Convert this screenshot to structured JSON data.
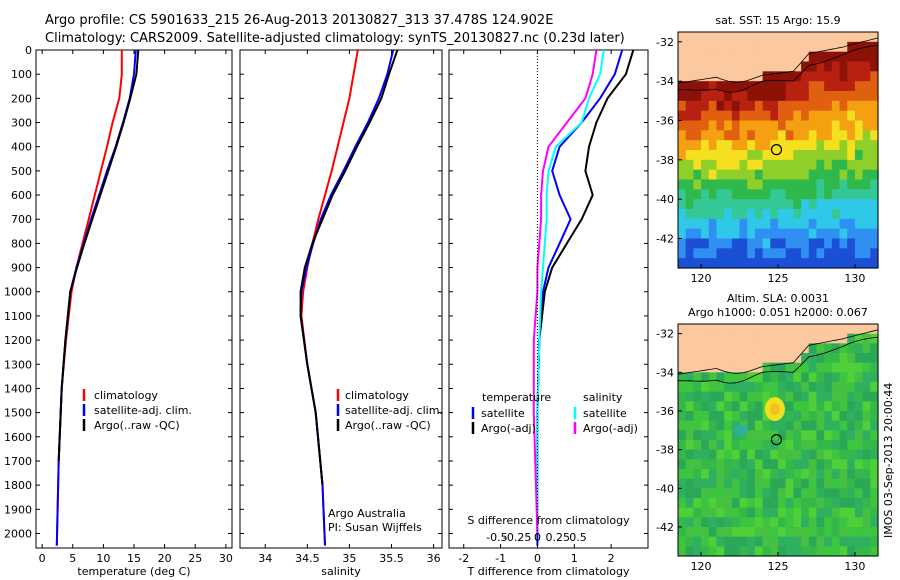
{
  "title_line1": "Argo profile: CS 5901633_215 26-Aug-2013 20130827_313 37.478S 124.902E",
  "title_line2": "Climatology: CARS2009. Satellite-adjusted climatology: synTS_20130827.nc (0.23d later)",
  "side_label": "IMOS 03-Sep-2013 20:00:44",
  "colors": {
    "climatology": "#ff0000",
    "satellite": "#0000ff",
    "argo": "#000000",
    "s_satellite": "#00ffff",
    "s_argo": "#ff00ff",
    "land": "#fbc8a0"
  },
  "chart_data": [
    {
      "type": "line",
      "id": "temperature",
      "xlabel": "temperature (deg C)",
      "ylabel": "",
      "xlim": [
        -1,
        31
      ],
      "ylim": [
        2060,
        0
      ],
      "xticks": [
        "0",
        "5",
        "10",
        "15",
        "20",
        "25",
        "30"
      ],
      "yticks": [
        "0",
        "100",
        "200",
        "300",
        "400",
        "500",
        "600",
        "700",
        "800",
        "900",
        "1000",
        "1100",
        "1200",
        "1300",
        "1400",
        "1500",
        "1600",
        "1700",
        "1800",
        "1900",
        "2000"
      ],
      "legend": [
        "climatology",
        "satellite-adj. clim.",
        "Argo(..raw -QC)"
      ],
      "series": [
        {
          "name": "climatology",
          "color": "#ff0000",
          "x": [
            13,
            13,
            12.6,
            11.5,
            10.6,
            9.6,
            8.6,
            7.6,
            6.6,
            5.6,
            4.8,
            3.9,
            3.2,
            2.7,
            2.4
          ],
          "y": [
            0,
            100,
            200,
            300,
            400,
            500,
            600,
            700,
            800,
            900,
            1000,
            1200,
            1400,
            1700,
            2050
          ]
        },
        {
          "name": "satellite-adj. clim.",
          "color": "#0000ff",
          "x": [
            15.3,
            15,
            14.3,
            13.2,
            12,
            10.6,
            9.3,
            8,
            6.8,
            5.6,
            4.6,
            3.8,
            3.2,
            2.7,
            2.4
          ],
          "y": [
            0,
            100,
            200,
            300,
            400,
            500,
            600,
            700,
            800,
            900,
            1000,
            1200,
            1400,
            1700,
            2050
          ]
        },
        {
          "name": "Argo(..raw -QC)",
          "color": "#000000",
          "x": [
            15.7,
            15.4,
            14.4,
            13.3,
            12.1,
            10.8,
            9.5,
            8.2,
            6.9,
            5.7,
            4.6,
            3.8,
            3.2,
            2.7
          ],
          "y": [
            0,
            100,
            200,
            300,
            400,
            500,
            600,
            700,
            800,
            900,
            1000,
            1200,
            1400,
            1700
          ]
        }
      ]
    },
    {
      "type": "line",
      "id": "salinity",
      "xlabel": "salinity",
      "xlim": [
        33.7,
        36.1
      ],
      "ylim": [
        2060,
        0
      ],
      "xticks": [
        "34",
        "34.5",
        "35",
        "35.5",
        "36"
      ],
      "legend": [
        "climatology",
        "satellite-adj. clim.",
        "Argo(..raw -QC)"
      ],
      "annotation": [
        "Argo Australia",
        "PI: Susan Wijffels"
      ],
      "series": [
        {
          "name": "climatology",
          "color": "#ff0000",
          "x": [
            35.1,
            35.05,
            35.0,
            34.93,
            34.86,
            34.79,
            34.71,
            34.63,
            34.56,
            34.5,
            34.45,
            34.43,
            34.5,
            34.6,
            34.68,
            34.71
          ],
          "y": [
            0,
            100,
            200,
            300,
            400,
            500,
            600,
            700,
            800,
            900,
            1000,
            1100,
            1300,
            1500,
            1800,
            2050
          ]
        },
        {
          "name": "satellite-adj. clim.",
          "color": "#0000ff",
          "x": [
            35.52,
            35.45,
            35.35,
            35.22,
            35.07,
            34.93,
            34.78,
            34.66,
            34.57,
            34.49,
            34.43,
            34.42,
            34.5,
            34.6,
            34.68,
            34.71
          ],
          "y": [
            0,
            100,
            200,
            300,
            400,
            500,
            600,
            700,
            800,
            900,
            1000,
            1100,
            1300,
            1500,
            1800,
            2050
          ]
        },
        {
          "name": "Argo(..raw -QC)",
          "color": "#000000",
          "x": [
            35.57,
            35.47,
            35.38,
            35.24,
            35.09,
            34.95,
            34.8,
            34.68,
            34.56,
            34.47,
            34.42,
            34.42,
            34.5,
            34.6,
            34.68
          ],
          "y": [
            0,
            100,
            200,
            300,
            400,
            500,
            600,
            700,
            800,
            900,
            1000,
            1100,
            1300,
            1500,
            1800
          ]
        }
      ]
    },
    {
      "type": "line",
      "id": "difference",
      "xlabel": "T difference from climatology",
      "xlabel2": "S difference from climatology",
      "xlim": [
        -2.4,
        3.0
      ],
      "ylim": [
        2060,
        0
      ],
      "xticks": [
        "-2",
        "-1",
        "0",
        "1",
        "2"
      ],
      "xticks2": [
        "-0.5",
        "-0.25",
        "0",
        "0.25",
        "0.5"
      ],
      "legend_left_title": "temperature",
      "legend_right_title": "salinity",
      "legend_left": [
        "satellite",
        "Argo(-adj)"
      ],
      "legend_right": [
        "satellite",
        "Argo(-adj)"
      ],
      "series": [
        {
          "name": "T satellite",
          "color": "#0000ff",
          "x": [
            2.3,
            2.1,
            1.7,
            1.2,
            0.6,
            0.4,
            0.6,
            0.9,
            0.6,
            0.3,
            0.15,
            0.05,
            0,
            0,
            0
          ],
          "y": [
            0,
            100,
            200,
            300,
            400,
            500,
            600,
            700,
            800,
            900,
            1000,
            1200,
            1500,
            1800,
            2050
          ]
        },
        {
          "name": "T Argo(-adj)",
          "color": "#000000",
          "x": [
            2.6,
            2.4,
            1.9,
            1.6,
            1.4,
            1.3,
            1.5,
            1.2,
            0.8,
            0.4,
            0.2,
            0.05,
            0,
            0
          ],
          "y": [
            0,
            100,
            200,
            300,
            400,
            500,
            600,
            700,
            800,
            900,
            1000,
            1200,
            1500,
            1800
          ]
        },
        {
          "name": "S satellite",
          "color": "#00ffff",
          "x": [
            1.8,
            1.7,
            1.4,
            1.2,
            0.5,
            0.3,
            0.25,
            0.25,
            0.2,
            0.15,
            0.1,
            0.05,
            0,
            0
          ],
          "y": [
            0,
            100,
            200,
            300,
            400,
            500,
            600,
            700,
            800,
            900,
            1000,
            1200,
            1500,
            2000
          ]
        },
        {
          "name": "S Argo(-adj)",
          "color": "#ff00ff",
          "x": [
            1.6,
            1.5,
            1.3,
            0.8,
            0.3,
            0.15,
            0.1,
            0.1,
            0.05,
            0,
            0,
            -0.1,
            -0.1,
            0
          ],
          "y": [
            0,
            100,
            200,
            300,
            400,
            500,
            600,
            700,
            800,
            900,
            1000,
            1200,
            1500,
            2000
          ]
        }
      ]
    },
    {
      "type": "heatmap",
      "id": "sst-map",
      "title": "sat. SST: 15 Argo: 15.9",
      "xlim": [
        118.5,
        131.5
      ],
      "ylim": [
        -43.5,
        -31.5
      ],
      "xticks": [
        "120",
        "125",
        "130"
      ],
      "yticks": [
        "-32",
        "-34",
        "-36",
        "-38",
        "-40",
        "-42"
      ],
      "marker": {
        "lon": 124.9,
        "lat": -37.48
      }
    },
    {
      "type": "heatmap",
      "id": "sla-map",
      "title": "Altim. SLA: 0.0031",
      "subtitle": "Argo h1000: 0.051 h2000: 0.067",
      "xlim": [
        118.5,
        131.5
      ],
      "ylim": [
        -43.5,
        -31.5
      ],
      "xticks": [
        "120",
        "125",
        "130"
      ],
      "yticks": [
        "-32",
        "-34",
        "-36",
        "-38",
        "-40",
        "-42"
      ],
      "marker": {
        "lon": 124.9,
        "lat": -37.48
      }
    }
  ]
}
